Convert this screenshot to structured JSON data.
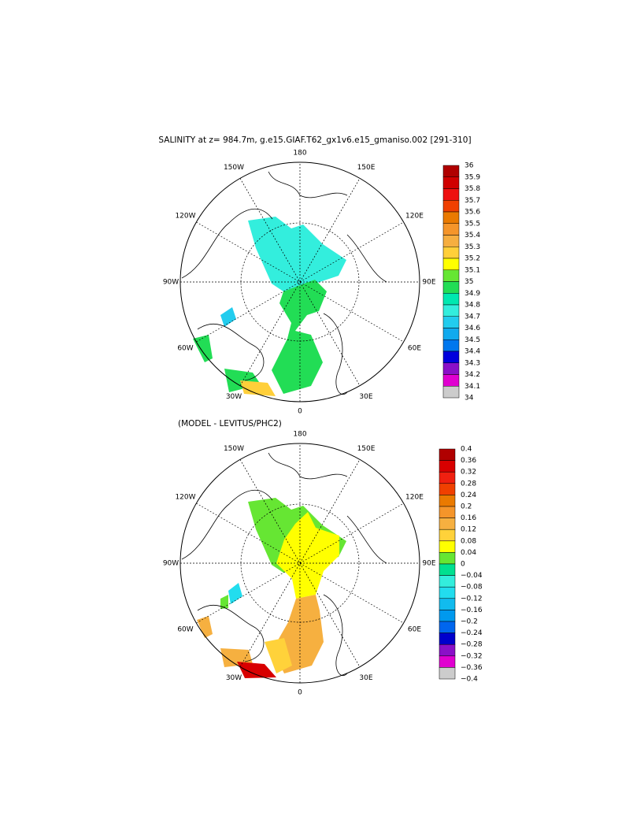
{
  "panels": [
    {
      "title": "SALINITY at z= 984.7m, g.e15.GIAF.T62_gx1v6.e15_gmaniso.002 [291-310]",
      "lon_labels": [
        "180",
        "150E",
        "120E",
        "90E",
        "60E",
        "30E",
        "0",
        "30W",
        "60W",
        "90W",
        "120W",
        "150W"
      ],
      "colorbar": {
        "labels": [
          "36",
          "35.9",
          "35.8",
          "35.7",
          "35.6",
          "35.5",
          "35.4",
          "35.3",
          "35.2",
          "35.1",
          "35",
          "34.9",
          "34.8",
          "34.7",
          "34.6",
          "34.5",
          "34.4",
          "34.3",
          "34.2",
          "34.1",
          "34"
        ],
        "colors": [
          "#b00000",
          "#d00000",
          "#ee1010",
          "#f04000",
          "#ea7a00",
          "#f5952a",
          "#f6ae40",
          "#ffcf3a",
          "#ffff00",
          "#66e633",
          "#22dd55",
          "#00e8b0",
          "#33eedd",
          "#22ccee",
          "#11aaee",
          "#0077ee",
          "#0000dd",
          "#8a10c8",
          "#e000d0",
          "#cccccc"
        ]
      }
    },
    {
      "title": "(MODEL - LEVITUS/PHC2)",
      "lon_labels": [
        "180",
        "150E",
        "120E",
        "90E",
        "60E",
        "30E",
        "0",
        "30W",
        "60W",
        "90W",
        "120W",
        "150W"
      ],
      "colorbar": {
        "labels": [
          "0.4",
          "0.36",
          "0.32",
          "0.28",
          "0.24",
          "0.2",
          "0.16",
          "0.12",
          "0.08",
          "0.04",
          "0",
          "−0.04",
          "−0.08",
          "−0.12",
          "−0.16",
          "−0.2",
          "−0.24",
          "−0.28",
          "−0.32",
          "−0.36",
          "−0.4"
        ],
        "colors": [
          "#b00000",
          "#d80000",
          "#f02010",
          "#f04000",
          "#ea7a00",
          "#f5952a",
          "#f6b040",
          "#ffd23a",
          "#ffff00",
          "#66e633",
          "#00e090",
          "#33eedd",
          "#22ddee",
          "#11bbee",
          "#0099ee",
          "#0066ee",
          "#0000cc",
          "#8a10c8",
          "#e000d0",
          "#cccccc"
        ]
      }
    }
  ]
}
